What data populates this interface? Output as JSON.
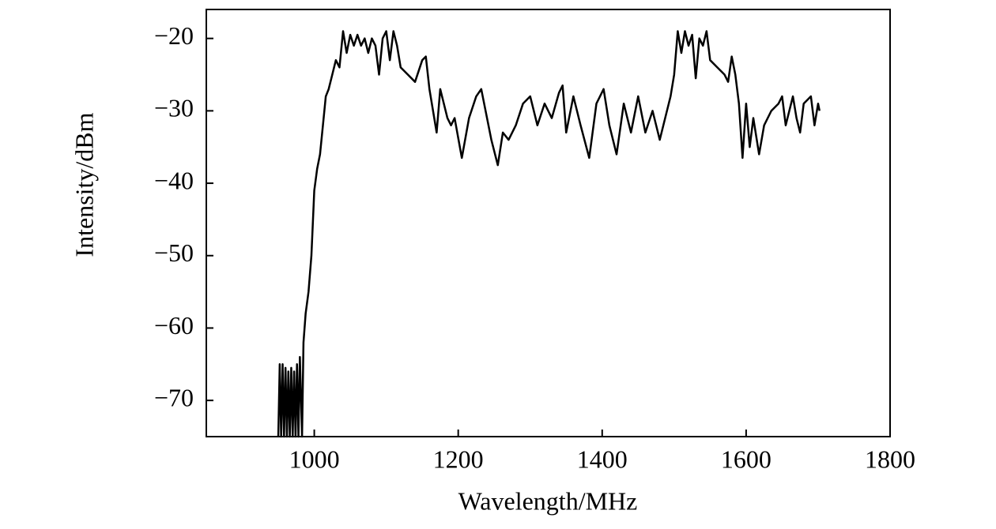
{
  "chart_data": {
    "type": "line",
    "x_label": "Wavelength/MHz",
    "y_label": "Intensity/dBm",
    "color": "#000000",
    "x": [
      950,
      952,
      954,
      956,
      958,
      960,
      962,
      964,
      966,
      968,
      970,
      972,
      974,
      976,
      978,
      980,
      983,
      985,
      988,
      992,
      996,
      1000,
      1004,
      1008,
      1012,
      1016,
      1020,
      1025,
      1030,
      1035,
      1040,
      1045,
      1050,
      1055,
      1060,
      1065,
      1070,
      1075,
      1080,
      1085,
      1090,
      1095,
      1100,
      1105,
      1110,
      1115,
      1120,
      1130,
      1140,
      1150,
      1155,
      1160,
      1165,
      1170,
      1175,
      1180,
      1185,
      1190,
      1195,
      1205,
      1215,
      1225,
      1232,
      1240,
      1246,
      1255,
      1262,
      1270,
      1280,
      1290,
      1300,
      1310,
      1320,
      1330,
      1340,
      1345,
      1350,
      1360,
      1370,
      1382,
      1392,
      1402,
      1410,
      1420,
      1430,
      1440,
      1450,
      1460,
      1470,
      1480,
      1490,
      1495,
      1500,
      1505,
      1510,
      1515,
      1520,
      1525,
      1530,
      1535,
      1540,
      1545,
      1550,
      1560,
      1570,
      1575,
      1580,
      1585,
      1590,
      1595,
      1600,
      1605,
      1610,
      1618,
      1625,
      1635,
      1645,
      1650,
      1655,
      1665,
      1670,
      1675,
      1680,
      1690,
      1695,
      1700,
      1702
    ],
    "values": [
      -75,
      -65,
      -75,
      -65,
      -75,
      -65.5,
      -75,
      -66,
      -75,
      -65.5,
      -75,
      -66,
      -75,
      -65,
      -75,
      -64,
      -75,
      -62,
      -58,
      -55,
      -50,
      -41,
      -38,
      -36,
      -32,
      -28,
      -27,
      -25,
      -23,
      -24,
      -19,
      -22,
      -19.5,
      -21,
      -19.5,
      -21,
      -20,
      -22,
      -20,
      -21,
      -25,
      -20,
      -19,
      -23,
      -19,
      -21,
      -24,
      -25,
      -26,
      -23,
      -22.5,
      -27,
      -30,
      -33,
      -27,
      -29,
      -31,
      -32,
      -31,
      -36.5,
      -31,
      -28,
      -27,
      -31,
      -34,
      -37.5,
      -33,
      -34,
      -32,
      -29,
      -28,
      -32,
      -29,
      -31,
      -27.5,
      -26.5,
      -33,
      -28,
      -32,
      -36.5,
      -29,
      -27,
      -32,
      -36,
      -29,
      -33,
      -28,
      -33,
      -30,
      -34,
      -30,
      -28,
      -25,
      -19,
      -22,
      -19,
      -21,
      -19.5,
      -25.5,
      -20,
      -21,
      -19,
      -23,
      -24,
      -25,
      -26,
      -22.5,
      -25,
      -29,
      -36.5,
      -29,
      -35,
      -31,
      -36,
      -32,
      -30,
      -29,
      -28,
      -32,
      -28,
      -31,
      -33,
      -29,
      -28,
      -32,
      -29,
      -30
    ],
    "xlim": [
      850,
      1800
    ],
    "xticks": [
      1000,
      1200,
      1400,
      1600,
      1800
    ],
    "ylim": [
      -75,
      -16
    ],
    "yticks": [
      {
        "value": -70,
        "label": "−70"
      },
      {
        "value": -60,
        "label": "−60"
      },
      {
        "value": -50,
        "label": "−50"
      },
      {
        "value": -40,
        "label": "−40"
      },
      {
        "value": -30,
        "label": "−30"
      },
      {
        "value": -20,
        "label": "−20"
      }
    ]
  }
}
